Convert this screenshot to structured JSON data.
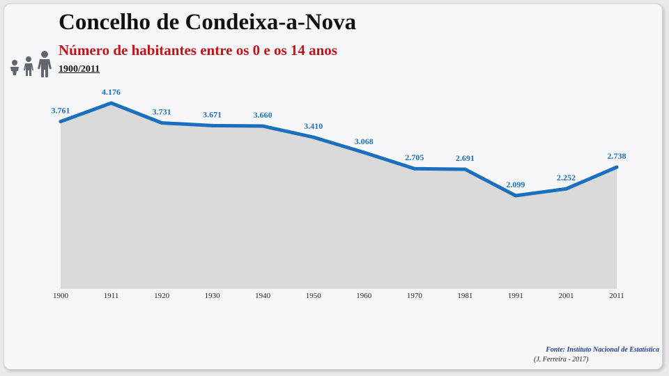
{
  "header": {
    "title": "Concelho de Condeixa-a-Nova",
    "subtitle": "Número de habitantes entre os 0 e os 14 anos",
    "period": "1900/2011",
    "icon": "family-people-icon"
  },
  "footer": {
    "source": "Fonte: Instituto Nacional de Estatística",
    "author": "(J. Ferreira - 2017)"
  },
  "colors": {
    "line": "#1a6fbf",
    "area": "#d9d9d9",
    "label": "#1a6fbf",
    "title": "#111111",
    "subtitle": "#c0141b"
  },
  "chart_data": {
    "type": "area",
    "x": [
      "1900",
      "1911",
      "1920",
      "1930",
      "1940",
      "1950",
      "1960",
      "1970",
      "1981",
      "1991",
      "2001",
      "2011"
    ],
    "values": [
      3761,
      4176,
      3731,
      3671,
      3660,
      3410,
      3068,
      2705,
      2691,
      2099,
      2252,
      2738
    ],
    "labels": [
      "3.761",
      "4.176",
      "3.731",
      "3.671",
      "3.660",
      "3.410",
      "3.068",
      "2.705",
      "2.691",
      "2.099",
      "2.252",
      "2.738"
    ],
    "grid": false,
    "legend": "none"
  }
}
